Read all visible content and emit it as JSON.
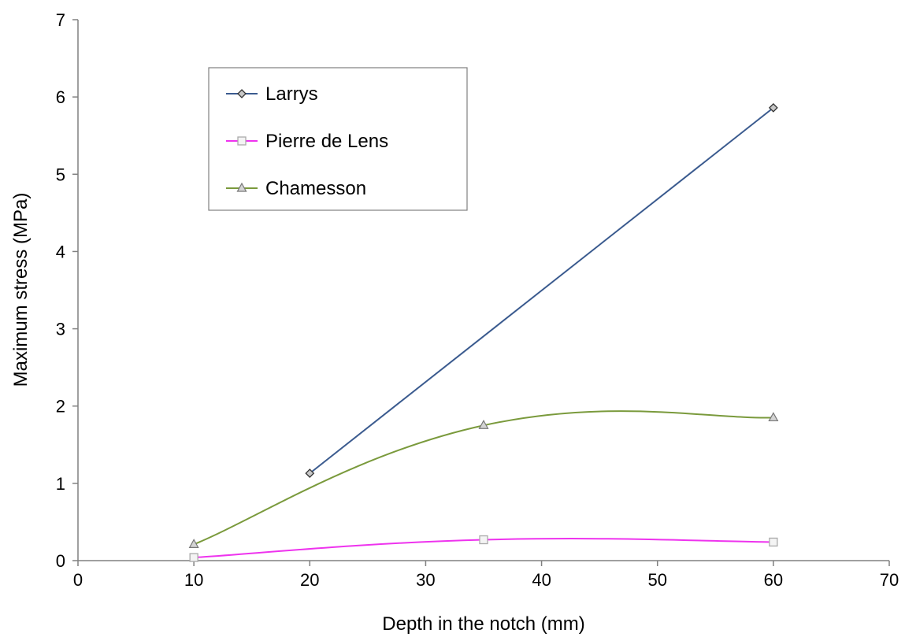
{
  "chart_data": {
    "type": "line",
    "title": "",
    "xlabel": "Depth in the notch (mm)",
    "ylabel": "Maximum stress (MPa)",
    "xlim": [
      0,
      70
    ],
    "ylim": [
      0,
      7
    ],
    "xticks": [
      "0",
      "10",
      "20",
      "30",
      "40",
      "50",
      "60",
      "70"
    ],
    "yticks": [
      "0",
      "1",
      "2",
      "3",
      "4",
      "5",
      "6",
      "7"
    ],
    "grid": false,
    "legend_position": "top-left",
    "series": [
      {
        "name": "Larrys",
        "x": [
          20,
          60
        ],
        "y": [
          1.13,
          5.86
        ],
        "color": "#3b5b8f",
        "marker": "diamond",
        "smooth": false
      },
      {
        "name": "Pierre de Lens",
        "x": [
          10,
          35,
          60
        ],
        "y": [
          0.04,
          0.27,
          0.24
        ],
        "color": "#ee33ee",
        "marker": "square",
        "smooth": true
      },
      {
        "name": "Chamesson",
        "x": [
          10,
          35,
          60
        ],
        "y": [
          0.21,
          1.75,
          1.85
        ],
        "color": "#7a9a3c",
        "marker": "triangle",
        "smooth": true
      }
    ]
  }
}
